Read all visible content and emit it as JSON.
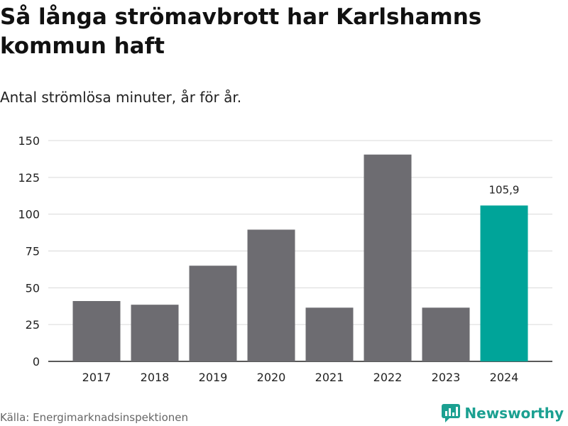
{
  "title": "Så långa strömavbrott har Karlshamns kommun haft",
  "subtitle": "Antal strömlösa minuter, år för år.",
  "source": "Källa: Energimarknadsinspektionen",
  "brand": "Newsworthy",
  "colors": {
    "bar": "#6d6c71",
    "highlight": "#00a499",
    "grid": "#d9d9d9",
    "axis": "#222222",
    "brand": "#1ba091"
  },
  "chart_data": {
    "type": "bar",
    "title": "Så långa strömavbrott har Karlshamns kommun haft",
    "subtitle": "Antal strömlösa minuter, år för år.",
    "xlabel": "",
    "ylabel": "",
    "categories": [
      "2017",
      "2018",
      "2019",
      "2020",
      "2021",
      "2022",
      "2023",
      "2024"
    ],
    "values": [
      41,
      38.5,
      65,
      89.5,
      36.5,
      140.5,
      36.5,
      105.9
    ],
    "highlight_index": 7,
    "data_labels": [
      {
        "index": 7,
        "text": "105,9"
      }
    ],
    "ylim": [
      0,
      150
    ],
    "yticks": [
      0,
      25,
      50,
      75,
      100,
      125,
      150
    ],
    "grid": true
  }
}
